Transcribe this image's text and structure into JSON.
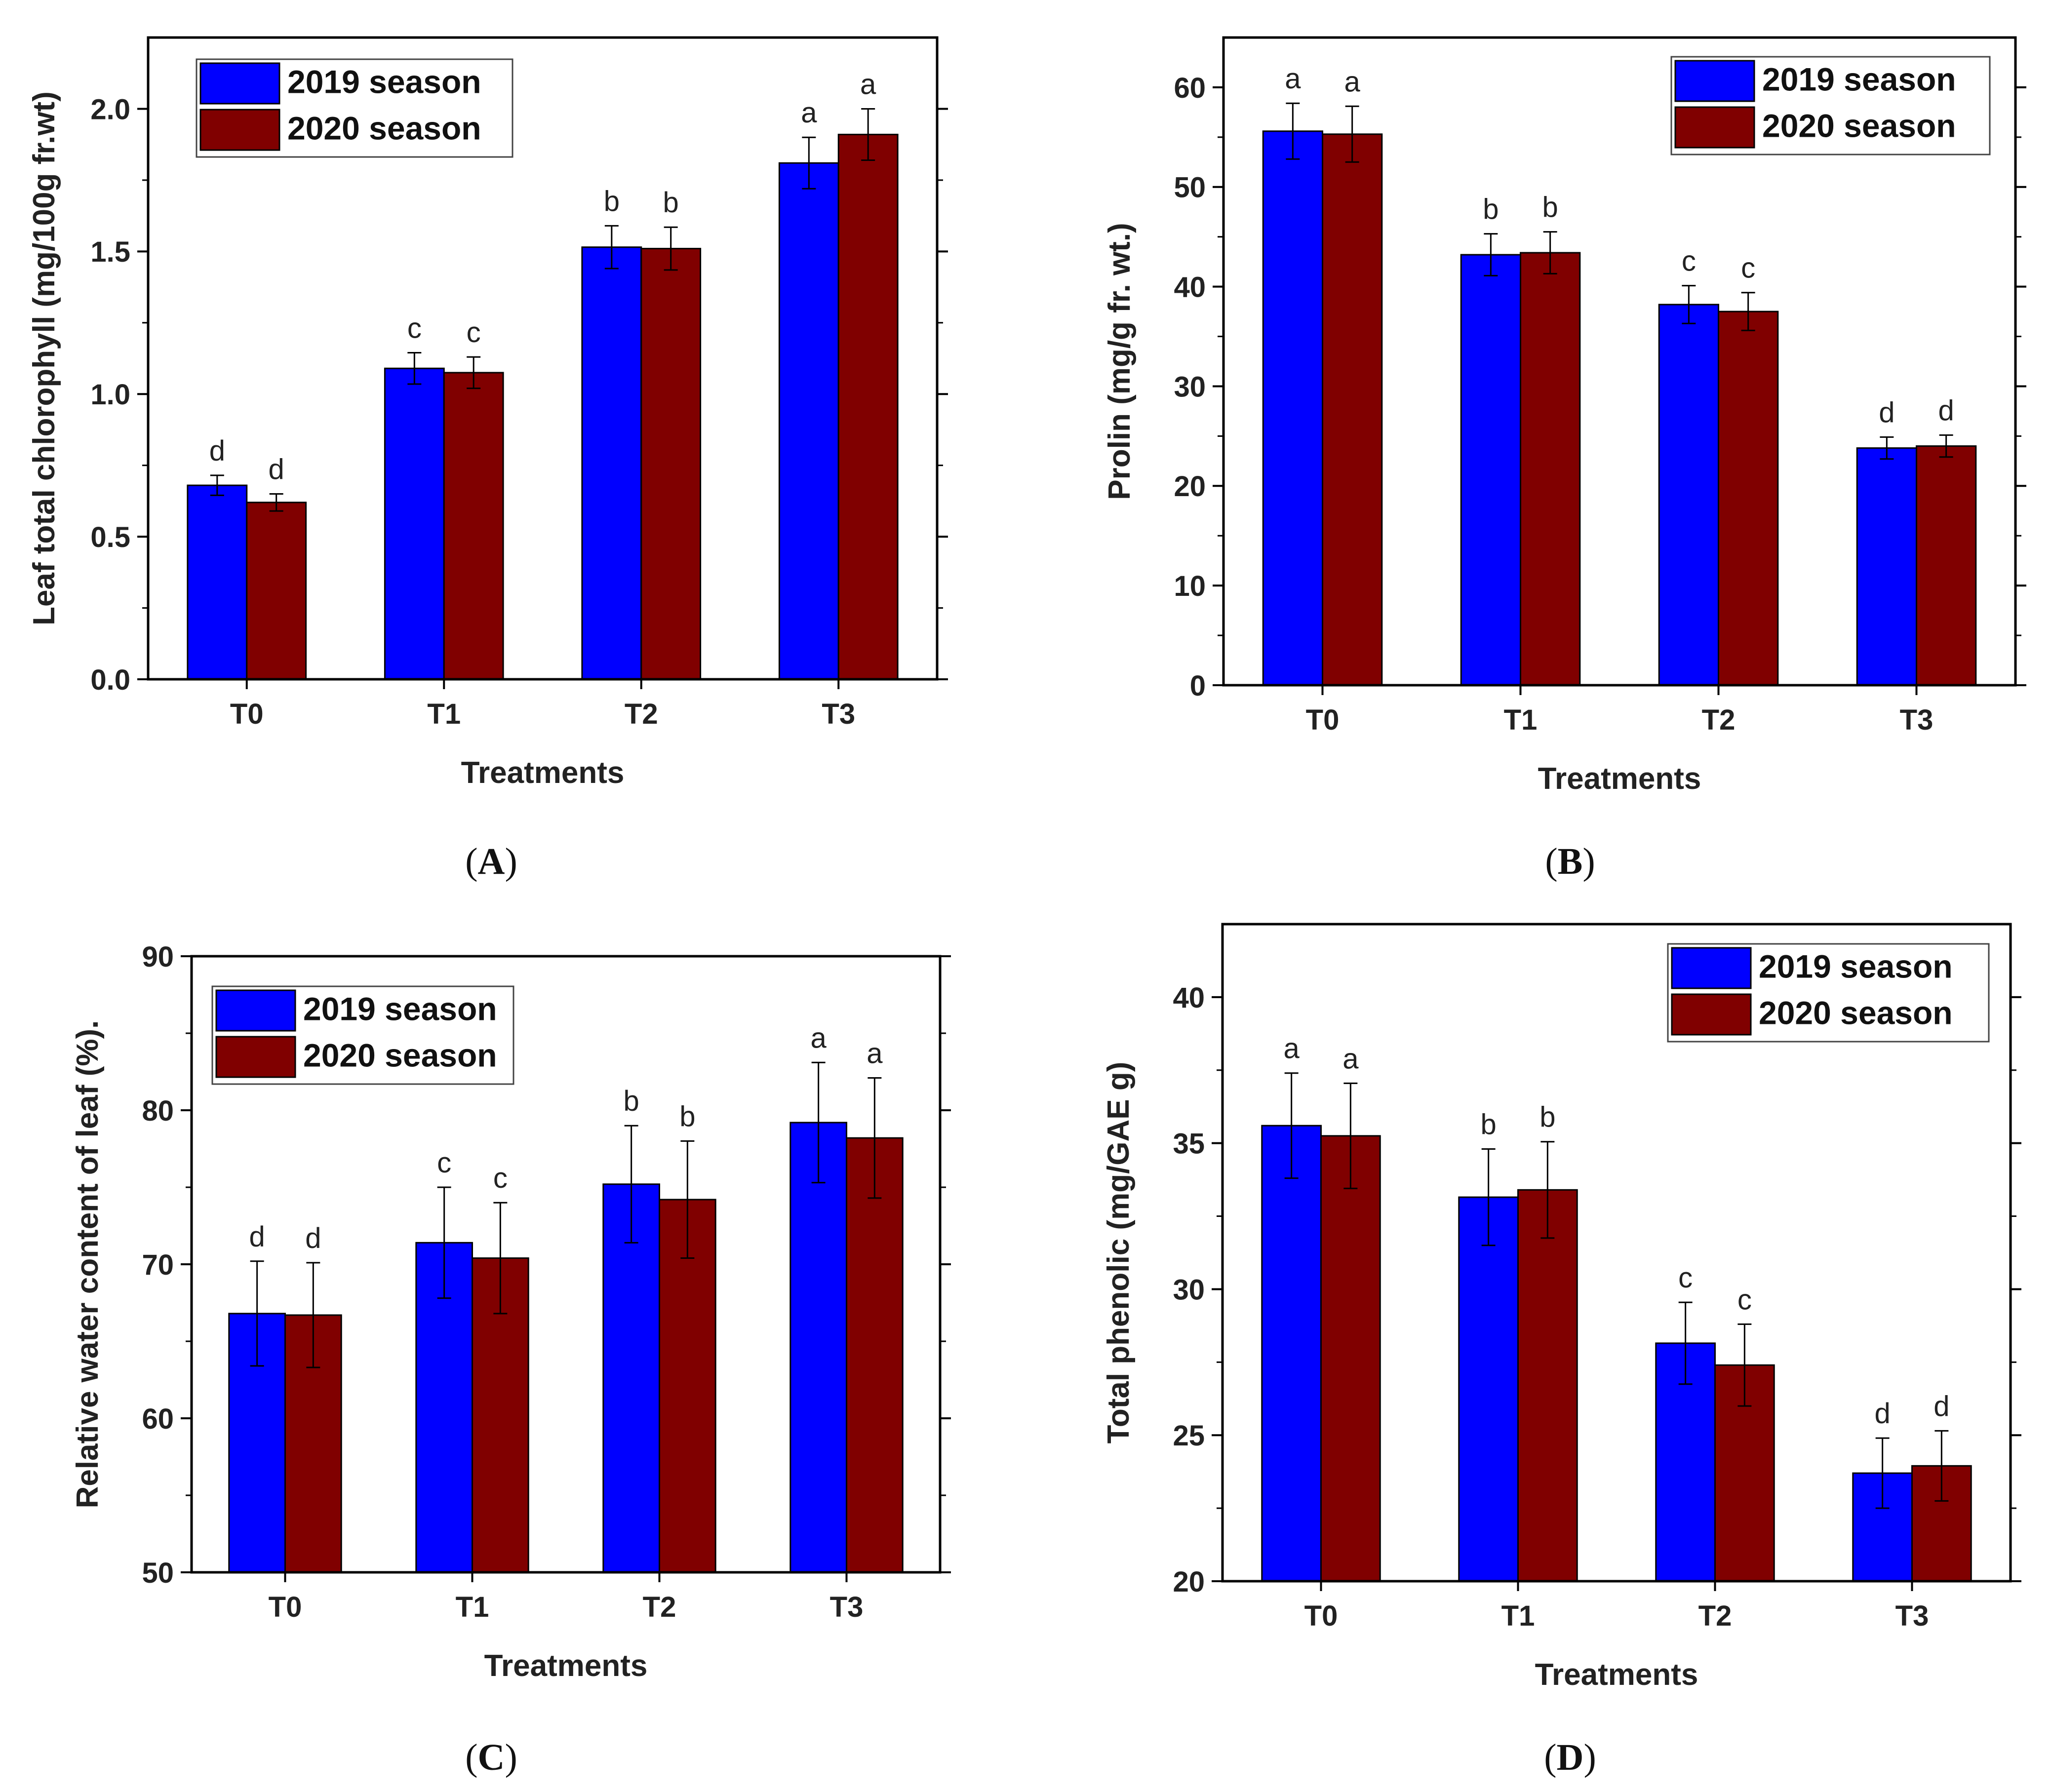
{
  "colors": {
    "series_2019": "#0000FF",
    "series_2020": "#800000",
    "axis": "#000000"
  },
  "chart_data": [
    {
      "panel": "A",
      "caption_letter": "A",
      "type": "bar",
      "categories": [
        "T0",
        "T1",
        "T2",
        "T3"
      ],
      "series": [
        {
          "name": "2019 season",
          "values": [
            0.68,
            1.09,
            1.515,
            1.81
          ],
          "errors": [
            0.035,
            0.055,
            0.075,
            0.09
          ],
          "letters": [
            "d",
            "c",
            "b",
            "a"
          ]
        },
        {
          "name": "2020 season",
          "values": [
            0.62,
            1.075,
            1.51,
            1.91
          ],
          "errors": [
            0.03,
            0.055,
            0.075,
            0.09
          ],
          "letters": [
            "d",
            "c",
            "b",
            "a"
          ]
        }
      ],
      "xlabel": "Treatments",
      "ylabel": "Leaf total chlorophyll (mg/100g fr.wt)",
      "ylim": [
        0,
        2.25
      ],
      "yticks": [
        0,
        0.5,
        1.0,
        1.5,
        2.0
      ],
      "ytick_labels": [
        "0.0",
        "0.5",
        "1.0",
        "1.5",
        "2.0"
      ],
      "legend_position": "top-left"
    },
    {
      "panel": "B",
      "caption_letter": "B",
      "type": "bar",
      "categories": [
        "T0",
        "T1",
        "T2",
        "T3"
      ],
      "series": [
        {
          "name": "2019 season",
          "values": [
            55.6,
            43.2,
            38.2,
            23.8
          ],
          "errors": [
            2.8,
            2.1,
            1.9,
            1.1
          ],
          "letters": [
            "a",
            "b",
            "c",
            "d"
          ]
        },
        {
          "name": "2020 season",
          "values": [
            55.3,
            43.4,
            37.5,
            24.0
          ],
          "errors": [
            2.8,
            2.1,
            1.9,
            1.1
          ],
          "letters": [
            "a",
            "b",
            "c",
            "d"
          ]
        }
      ],
      "xlabel": "Treatments",
      "ylabel": "Prolin (mg/g fr. wt.)",
      "ylim": [
        0,
        65
      ],
      "yticks": [
        0,
        10,
        20,
        30,
        40,
        50,
        60
      ],
      "ytick_labels": [
        "0",
        "10",
        "20",
        "30",
        "40",
        "50",
        "60"
      ],
      "legend_position": "top-right"
    },
    {
      "panel": "C",
      "caption_letter": "C",
      "type": "bar",
      "categories": [
        "T0",
        "T1",
        "T2",
        "T3"
      ],
      "series": [
        {
          "name": "2019 season",
          "values": [
            66.8,
            71.4,
            75.2,
            79.2
          ],
          "errors": [
            3.4,
            3.6,
            3.8,
            3.9
          ],
          "letters": [
            "d",
            "c",
            "b",
            "a"
          ]
        },
        {
          "name": "2020 season",
          "values": [
            66.7,
            70.4,
            74.2,
            78.2
          ],
          "errors": [
            3.4,
            3.6,
            3.8,
            3.9
          ],
          "letters": [
            "d",
            "c",
            "b",
            "a"
          ]
        }
      ],
      "xlabel": "Treatments",
      "ylabel": "Relative water content of leaf (%).",
      "ylim": [
        50,
        90
      ],
      "yticks": [
        50,
        60,
        70,
        80,
        90
      ],
      "ytick_labels": [
        "50",
        "60",
        "70",
        "80",
        "90"
      ],
      "legend_position": "top-left"
    },
    {
      "panel": "D",
      "caption_letter": "D",
      "type": "bar",
      "categories": [
        "T0",
        "T1",
        "T2",
        "T3"
      ],
      "series": [
        {
          "name": "2019 season",
          "values": [
            35.6,
            33.15,
            28.15,
            23.7
          ],
          "errors": [
            1.8,
            1.65,
            1.4,
            1.2
          ],
          "letters": [
            "a",
            "b",
            "c",
            "d"
          ]
        },
        {
          "name": "2020 season",
          "values": [
            35.25,
            33.4,
            27.4,
            23.95
          ],
          "errors": [
            1.8,
            1.65,
            1.4,
            1.2
          ],
          "letters": [
            "a",
            "b",
            "c",
            "d"
          ]
        }
      ],
      "xlabel": "Treatments",
      "ylabel": "Total phenolic (mg/GAE g)",
      "ylim": [
        20,
        42.5
      ],
      "yticks": [
        20,
        25,
        30,
        35,
        40
      ],
      "ytick_labels": [
        "20",
        "25",
        "30",
        "35",
        "40"
      ],
      "legend_position": "top-right"
    }
  ]
}
